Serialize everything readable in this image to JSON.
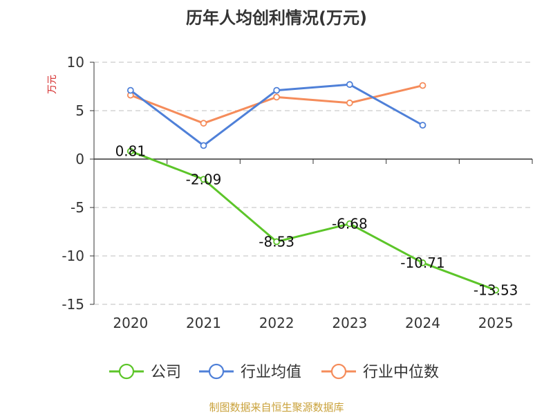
{
  "chart_data": {
    "type": "line",
    "title": "历年人均创利情况(万元)",
    "ylabel": "万元",
    "categories": [
      "2020",
      "2021",
      "2022",
      "2023",
      "2024",
      "2025"
    ],
    "ylim": [
      -15,
      10
    ],
    "yticks": [
      10,
      5,
      0,
      -5,
      -10,
      -15
    ],
    "grid": true,
    "legend_position": "bottom",
    "series": [
      {
        "name": "公司",
        "color": "#5cc529",
        "values": [
          0.81,
          -2.09,
          -8.53,
          -6.68,
          -10.71,
          -13.53
        ],
        "labels": [
          "0.81",
          "-2.09",
          "-8.53",
          "-6.68",
          "-10.71",
          "-13.53"
        ]
      },
      {
        "name": "行业均值",
        "color": "#4f80d8",
        "values": [
          7.1,
          1.4,
          7.1,
          7.7,
          3.5,
          null
        ]
      },
      {
        "name": "行业中位数",
        "color": "#f58c5b",
        "values": [
          6.6,
          3.7,
          6.4,
          5.8,
          7.6,
          null
        ]
      }
    ]
  },
  "colors": {
    "ylabel": "#d42a2a",
    "source": "#c9a13a",
    "grid": "#cccccc",
    "axis": "#333333"
  },
  "source": "制图数据来自恒生聚源数据库"
}
